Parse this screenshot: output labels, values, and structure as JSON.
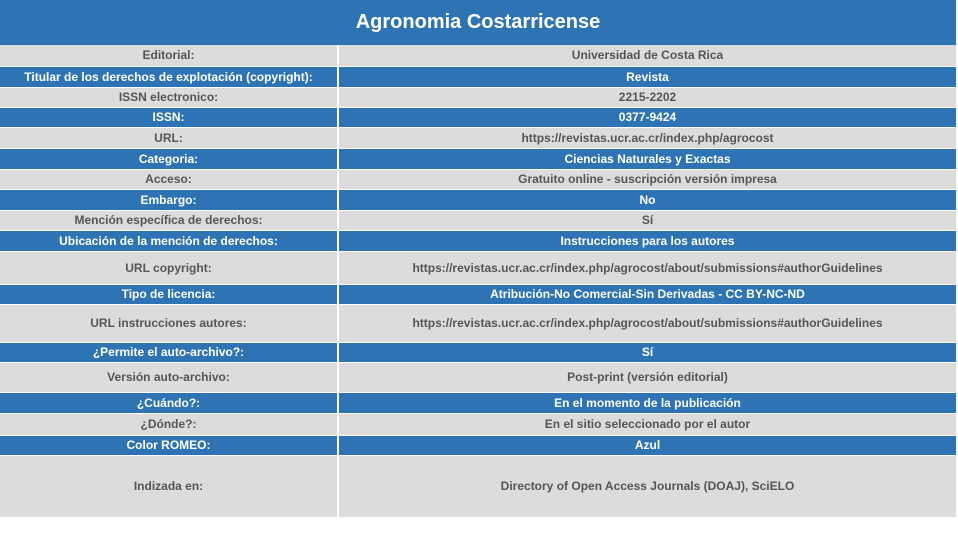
{
  "title": "Agronomia Costarricense",
  "colors": {
    "header": "#2e74b5",
    "row_gray": "#dcdcdc",
    "text_gray": "#555555"
  },
  "rows": [
    {
      "label": "Editorial:",
      "value": "Universidad de Costa Rica",
      "style": "gray"
    },
    {
      "label": "Titular de los derechos de explotación (copyright):",
      "value": "Revista",
      "style": "blue"
    },
    {
      "label": "ISSN electronico:",
      "value": "2215-2202",
      "style": "gray"
    },
    {
      "label": "ISSN:",
      "value": "0377-9424",
      "style": "blue"
    },
    {
      "label": "URL:",
      "value": "https://revistas.ucr.ac.cr/index.php/agrocost",
      "style": "gray"
    },
    {
      "label": "Categoria:",
      "value": "Ciencias Naturales y Exactas",
      "style": "blue"
    },
    {
      "label": "Acceso:",
      "value": "Gratuito online - suscripción versión impresa",
      "style": "gray"
    },
    {
      "label": "Embargo:",
      "value": "No",
      "style": "blue"
    },
    {
      "label": "Mención específica de derechos:",
      "value": "Sí",
      "style": "gray"
    },
    {
      "label": "Ubicación de la mención de derechos:",
      "value": "Instrucciones para los autores",
      "style": "blue"
    },
    {
      "label": "URL copyright:",
      "value": "https://revistas.ucr.ac.cr/index.php/agrocost/about/submissions#authorGuidelines",
      "style": "gray"
    },
    {
      "label": "Tipo de licencia:",
      "value": "Atribución-No Comercial-Sin Derivadas - CC BY-NC-ND",
      "style": "blue"
    },
    {
      "label": "URL instrucciones autores:",
      "value": "https://revistas.ucr.ac.cr/index.php/agrocost/about/submissions#authorGuidelines",
      "style": "gray"
    },
    {
      "label": "¿Permite el auto-archivo?:",
      "value": "Sí",
      "style": "blue"
    },
    {
      "label": "Versión auto-archivo:",
      "value": "Post-print (versión editorial)",
      "style": "gray"
    },
    {
      "label": "¿Cuándo?:",
      "value": "En el momento de la publicación",
      "style": "blue"
    },
    {
      "label": "¿Dónde?:",
      "value": "En el sitio seleccionado por el autor",
      "style": "gray"
    },
    {
      "label": "Color ROMEO:",
      "value": "Azul",
      "style": "blue"
    },
    {
      "label": "Indizada en:",
      "value": "Directory of Open Access Journals (DOAJ), SciELO",
      "style": "gray"
    }
  ]
}
